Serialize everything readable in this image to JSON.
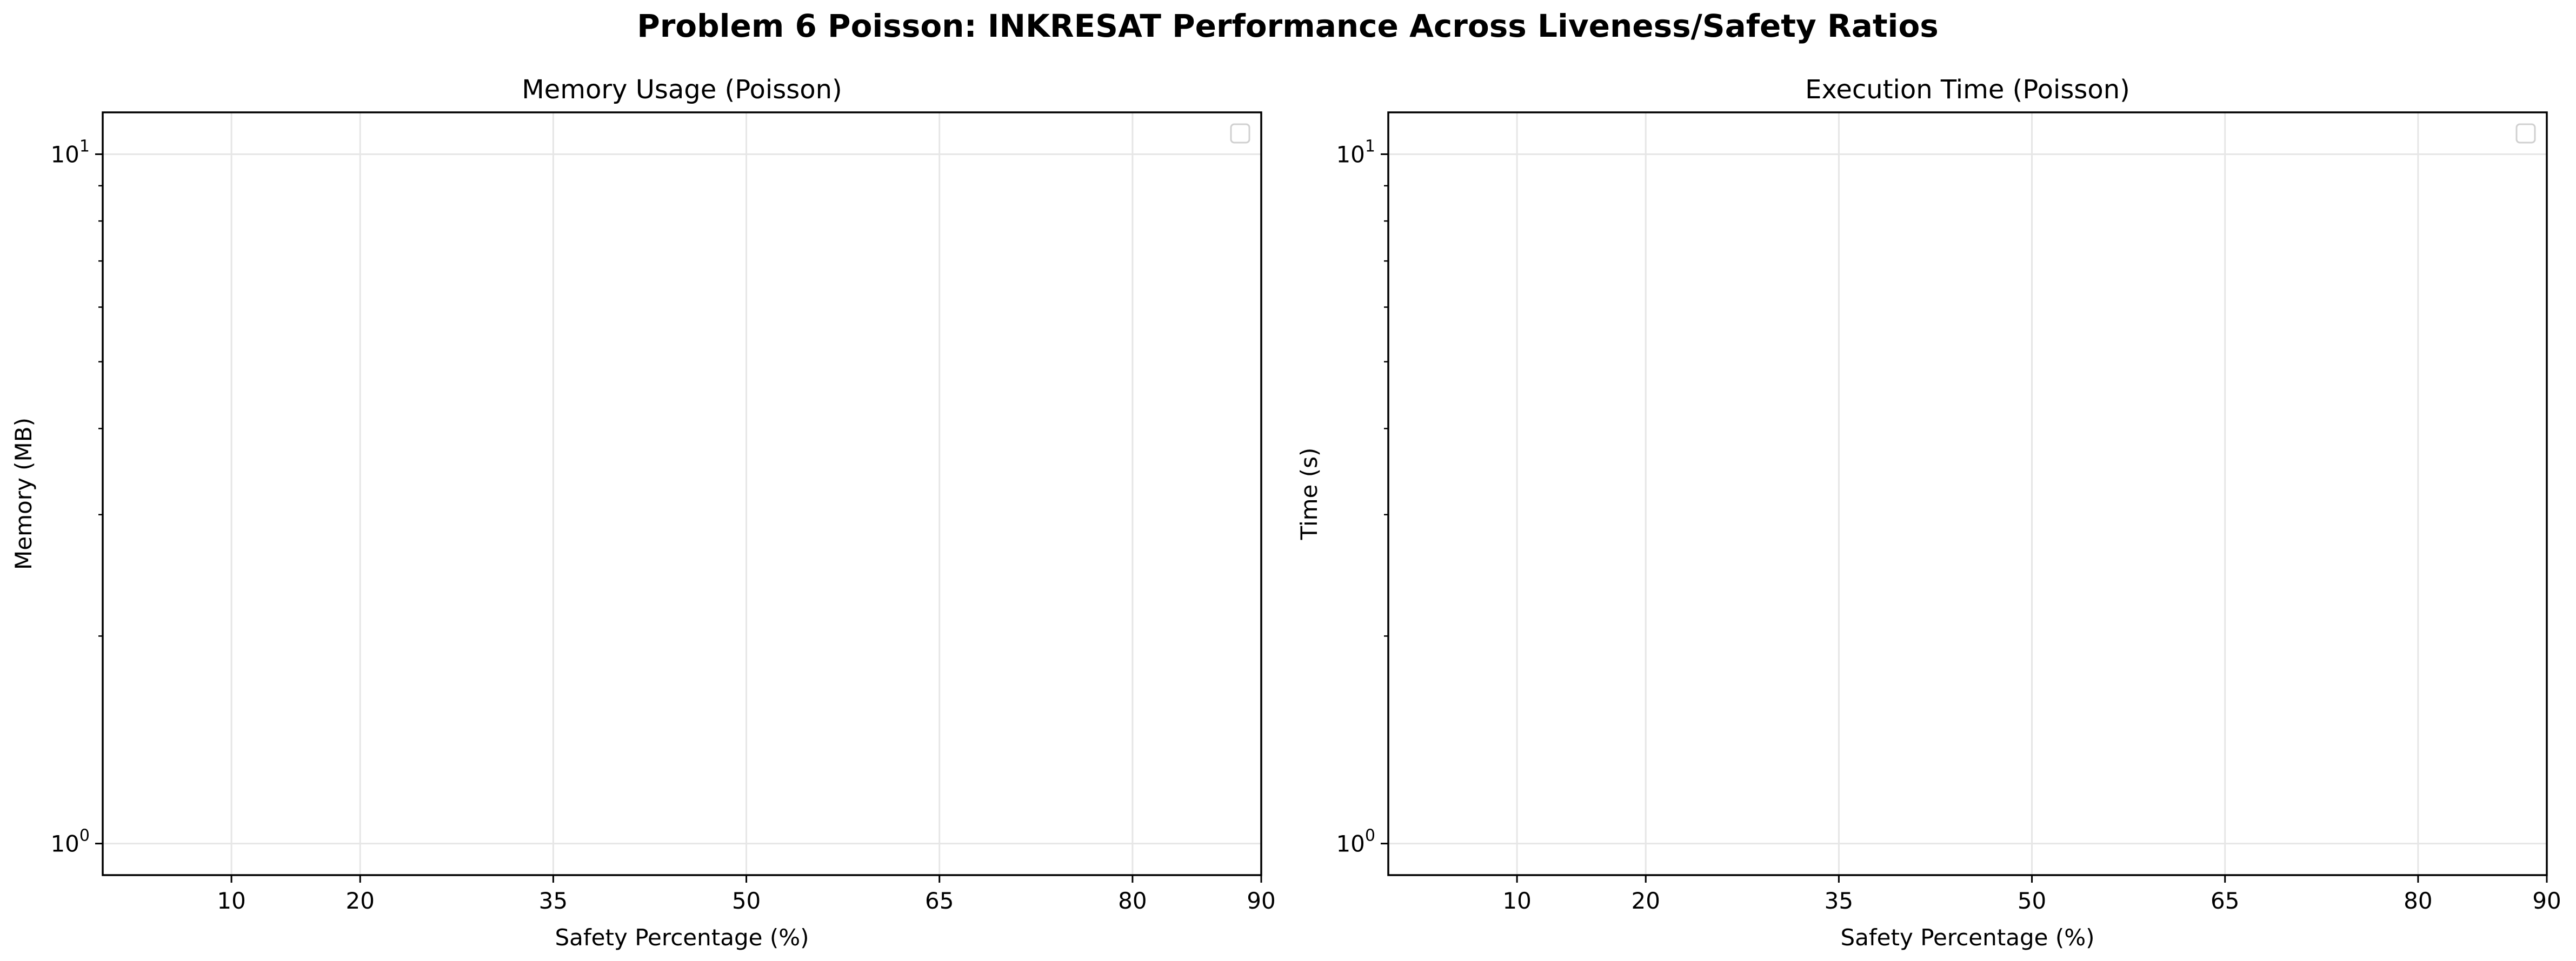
{
  "figure": {
    "suptitle": "Problem 6 Poisson: INKRESAT Performance Across Liveness/Safety Ratios"
  },
  "chart_data": [
    {
      "type": "line",
      "title": "Memory Usage (Poisson)",
      "xlabel": "Safety Percentage (%)",
      "ylabel": "Memory (MB)",
      "x_ticks": [
        10,
        20,
        35,
        50,
        65,
        80,
        90
      ],
      "xlim": [
        0,
        90
      ],
      "yscale": "log",
      "ylim": [
        0.9,
        11.5
      ],
      "y_major_ticks": [
        {
          "value": 1,
          "base": "10",
          "exp": "0"
        },
        {
          "value": 10,
          "base": "10",
          "exp": "1"
        }
      ],
      "grid": true,
      "legend": "top-right",
      "series": []
    },
    {
      "type": "line",
      "title": "Execution Time (Poisson)",
      "xlabel": "Safety Percentage (%)",
      "ylabel": "Time (s)",
      "x_ticks": [
        10,
        20,
        35,
        50,
        65,
        80,
        90
      ],
      "xlim": [
        0,
        90
      ],
      "yscale": "log",
      "ylim": [
        0.9,
        11.5
      ],
      "y_major_ticks": [
        {
          "value": 1,
          "base": "10",
          "exp": "0"
        },
        {
          "value": 10,
          "base": "10",
          "exp": "1"
        }
      ],
      "grid": true,
      "legend": "top-right",
      "series": []
    }
  ]
}
